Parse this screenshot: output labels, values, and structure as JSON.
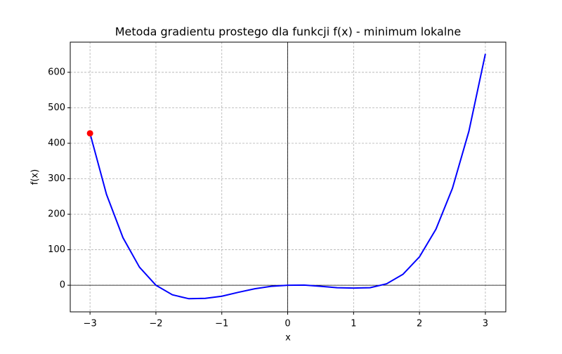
{
  "chart_data": {
    "type": "line",
    "title": "Metoda gradientu prostego dla funkcji f(x) - minimum lokalne",
    "x_label": "x",
    "y_label": "f(x)",
    "x": [
      -3,
      -2.75,
      -2.5,
      -2.25,
      -2,
      -1.75,
      -1.5,
      -1.25,
      -1,
      -0.75,
      -0.5,
      -0.25,
      0,
      0.25,
      0.5,
      0.75,
      1,
      1.25,
      1.5,
      1.75,
      2,
      2.25,
      2.5,
      2.75,
      3
    ],
    "series": [
      {
        "color": "#0000ff",
        "values": [
          428,
          256,
          134,
          51,
          0,
          -27,
          -38,
          -37,
          -31,
          -20,
          -10,
          -3,
          0,
          0.5,
          -3,
          -7,
          -8,
          -7,
          4,
          31,
          80,
          158,
          273,
          434,
          652
        ]
      }
    ],
    "points": [
      {
        "color": "#ff0000",
        "x": -3,
        "y": 428
      }
    ],
    "xlim": [
      -3.3,
      3.31
    ],
    "ylim": [
      -75,
      685
    ],
    "xticks": [
      {
        "value": -3,
        "label": "−3"
      },
      {
        "value": -2,
        "label": "−2"
      },
      {
        "value": -1,
        "label": "−1"
      },
      0,
      1,
      2,
      3
    ],
    "yticks": [
      0,
      100,
      200,
      300,
      400,
      500,
      600
    ],
    "grid": true,
    "zero_lines": true
  }
}
